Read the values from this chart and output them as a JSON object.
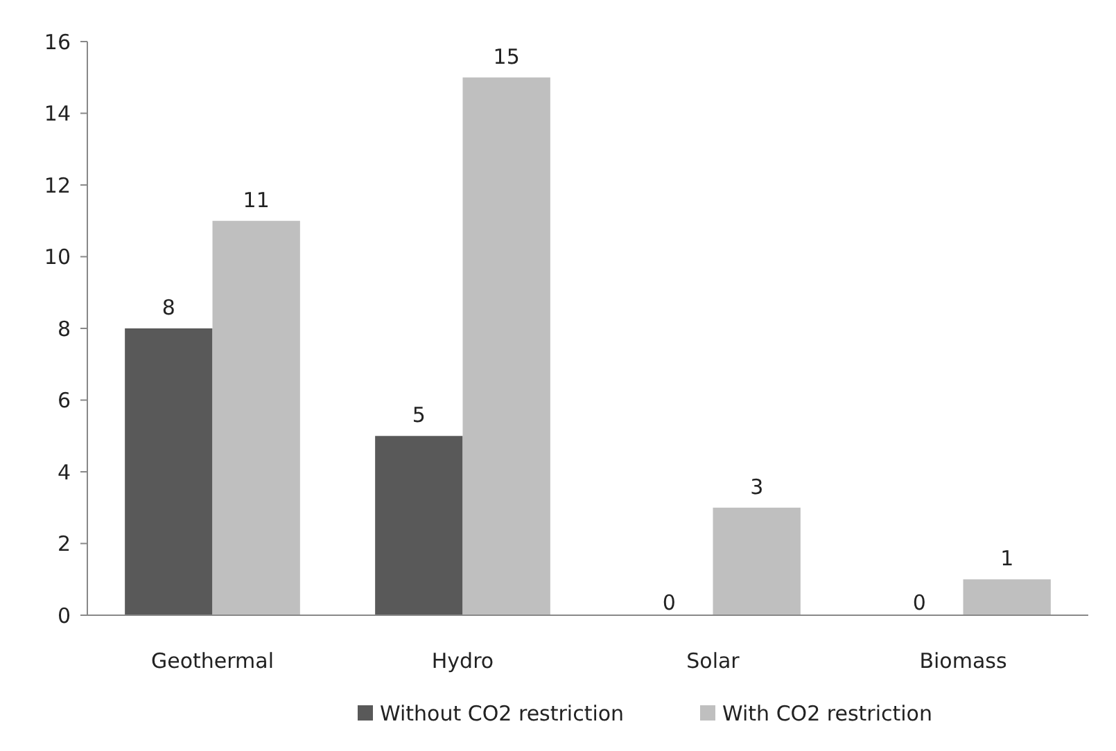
{
  "chart_data": {
    "type": "bar",
    "categories": [
      "Geothermal",
      "Hydro",
      "Solar",
      "Biomass"
    ],
    "series": [
      {
        "name": "Without CO2 restriction",
        "color": "#595959",
        "values": [
          8,
          5,
          0,
          0
        ]
      },
      {
        "name": "With CO2 restriction",
        "color": "#bfbfbf",
        "values": [
          11,
          15,
          3,
          1
        ]
      }
    ],
    "ylim": [
      0,
      16
    ],
    "yticks": [
      0,
      2,
      4,
      6,
      8,
      10,
      12,
      14,
      16
    ],
    "grid": false,
    "legend": "bottom",
    "data_labels": true
  }
}
